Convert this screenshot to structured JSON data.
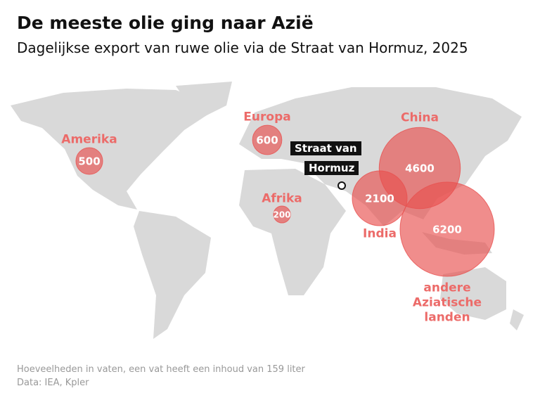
{
  "title": "De meeste olie ging naar Azië",
  "subtitle": "Dagelijkse export van ruwe olie via de Straat van Hormuz, 2025",
  "strait": {
    "lines": [
      "Straat van",
      "Hormuz"
    ]
  },
  "bubble_color": "#e8504f",
  "label_color": "#ec6b69",
  "regions": [
    {
      "name": "Amerika",
      "value": 500
    },
    {
      "name": "Europa",
      "value": 600
    },
    {
      "name": "Afrika",
      "value": 200
    },
    {
      "name": "India",
      "value": 2100
    },
    {
      "name": "China",
      "value": 4600
    },
    {
      "name": "andere Aziatische landen",
      "value": 6200
    }
  ],
  "notes": [
    "Hoeveelheden in vaten, een vat heeft een inhoud van 159 liter",
    "Data: IEA, Kpler"
  ]
}
